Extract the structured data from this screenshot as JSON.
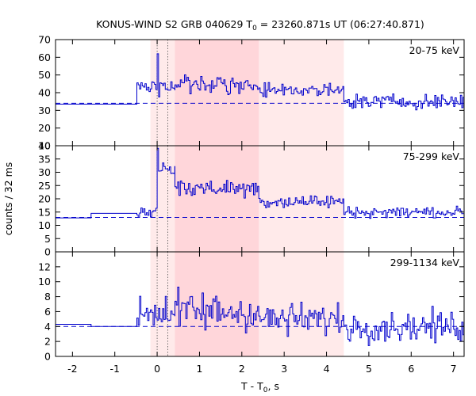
{
  "chart_data": {
    "type": "line",
    "title": {
      "main": "KONUS-WIND S2 GRB 040629 T",
      "sub": "0",
      "rest": " = 23260.871s UT (06:27:40.871)"
    },
    "xlabel": {
      "main": "T - T",
      "sub": "0",
      "rest": ", s"
    },
    "ylabel": "counts / 32 ms",
    "xlim": [
      -2.4,
      7.25
    ],
    "xticks": [
      -2,
      -1,
      0,
      1,
      2,
      3,
      4,
      5,
      6,
      7
    ],
    "bin_width_s": 0.032,
    "shaded_intervals": [
      {
        "x0": -0.16,
        "x1": 4.41,
        "color": "#ffeaea"
      },
      {
        "x0": 0.42,
        "x1": 2.4,
        "color": "#ffd6da"
      }
    ],
    "dotted_vlines": [
      0.0,
      0.25
    ],
    "colors": {
      "series": "#0000cc",
      "background_line": "#0000cc"
    },
    "panels": [
      {
        "label": "20-75 keV",
        "ylim": [
          10,
          70
        ],
        "yticks": [
          10,
          20,
          30,
          40,
          50,
          60,
          70
        ],
        "background_level": 34,
        "pre_trigger_steps": [
          {
            "x0": -2.4,
            "x1": -0.48,
            "y": 33.5
          }
        ],
        "segments": [
          {
            "t0": -0.48,
            "t1": 0.42,
            "base": 43,
            "amp": 7,
            "peak_t": 0.0,
            "peak_y": 62
          },
          {
            "t0": 0.42,
            "t1": 2.4,
            "base": 45,
            "amp": 7
          },
          {
            "t0": 2.4,
            "t1": 4.41,
            "base": 41,
            "amp": 6
          },
          {
            "t0": 4.41,
            "t1": 7.25,
            "base": 35,
            "amp": 6
          }
        ]
      },
      {
        "label": "75-299 keV",
        "ylim": [
          0,
          40
        ],
        "yticks": [
          0,
          5,
          10,
          15,
          20,
          25,
          30,
          35,
          40
        ],
        "background_level": 13,
        "pre_trigger_steps": [
          {
            "x0": -2.4,
            "x1": -1.56,
            "y": 12.8
          },
          {
            "x0": -1.56,
            "x1": -0.48,
            "y": 14.5
          }
        ],
        "segments": [
          {
            "t0": -0.48,
            "t1": 0.0,
            "base": 15,
            "amp": 4
          },
          {
            "t0": 0.0,
            "t1": 0.42,
            "base": 32,
            "amp": 6,
            "peak_t": 0.0,
            "peak_y": 39
          },
          {
            "t0": 0.42,
            "t1": 2.4,
            "base": 24,
            "amp": 5
          },
          {
            "t0": 2.4,
            "t1": 4.41,
            "base": 19,
            "amp": 4
          },
          {
            "t0": 4.41,
            "t1": 7.25,
            "base": 15,
            "amp": 3
          }
        ]
      },
      {
        "label": "299-1134 keV",
        "ylim": [
          0,
          14
        ],
        "yticks": [
          0,
          2,
          4,
          6,
          8,
          10,
          12
        ],
        "background_level": 4,
        "pre_trigger_steps": [
          {
            "x0": -2.4,
            "x1": -1.56,
            "y": 4.3
          },
          {
            "x0": -1.56,
            "x1": -0.48,
            "y": 4.0
          }
        ],
        "segments": [
          {
            "t0": -0.48,
            "t1": 0.42,
            "base": 6,
            "amp": 4
          },
          {
            "t0": 0.42,
            "t1": 2.4,
            "base": 6,
            "amp": 4
          },
          {
            "t0": 2.4,
            "t1": 4.41,
            "base": 5,
            "amp": 3
          },
          {
            "t0": 4.41,
            "t1": 7.25,
            "base": 4,
            "amp": 3
          }
        ]
      }
    ]
  }
}
